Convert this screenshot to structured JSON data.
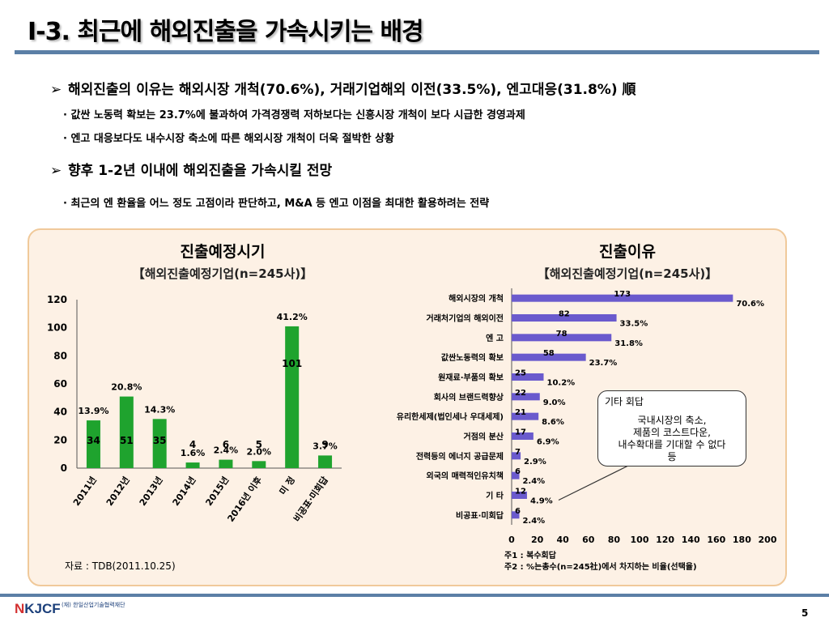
{
  "header": {
    "title": "I-3. 최근에 해외진출을 가속시키는 배경"
  },
  "bullets": [
    {
      "text": "해외진출의 이유는 해외시장 개척(70.6%), 거래기업해외 이전(33.5%), 엔고대응(31.8%) 順",
      "subs": [
        "· 값싼 노동력 확보는 23.7%에 불과하여 가격경쟁력 저하보다는 신흥시장 개척이 보다 시급한 경영과제",
        "· 엔고 대응보다도 내수시장 축소에 따른 해외시장 개척이 더욱 절박한 상황"
      ]
    },
    {
      "text": "향후 1-2년 이내에 해외진출을 가속시킬 전망",
      "subs": [
        "· 최근의 엔 환율을 어느 정도 고점이라 판단하고, M&A 등 엔고 이점을 최대한 활용하려는 전략"
      ]
    }
  ],
  "left_chart_heading": {
    "title": "진출예정시기",
    "subtitle": "【해외진출예정기업(n=245사)】"
  },
  "right_chart_heading": {
    "title": "진출이유",
    "subtitle": "【해외진출예정기업(n=245사)】"
  },
  "chart_data": [
    {
      "type": "bar",
      "title": "진출예정시기",
      "categories": [
        "2011년",
        "2012년",
        "2013년",
        "2014년",
        "2015년",
        "2016년 이후",
        "미 정",
        "비공표·미회답"
      ],
      "values": [
        34,
        51,
        35,
        4,
        6,
        5,
        101,
        9
      ],
      "percent_labels": [
        "13.9%",
        "20.8%",
        "14.3%",
        "1.6%",
        "2.4%",
        "2.0%",
        "41.2%",
        "3.7%"
      ],
      "y_ticks": [
        "0",
        "20",
        "40",
        "60",
        "80",
        "100",
        "120"
      ],
      "ylim": [
        0,
        120
      ],
      "color": "#1fa32e"
    },
    {
      "type": "bar",
      "orientation": "horizontal",
      "title": "진출이유",
      "categories": [
        "해외시장의 개척",
        "거래처기업의 해외이전",
        "엔 고",
        "값싼노동력의 확보",
        "원재료·부품의 확보",
        "회사의 브랜드력향상",
        "유리한세제(법인세나 우대세제)",
        "거점의 분산",
        "전력등의 에너지 공급문제",
        "외국의 매력적인유치책",
        "기 타",
        "비공표·미회답"
      ],
      "values": [
        173,
        82,
        78,
        58,
        25,
        22,
        21,
        17,
        7,
        6,
        12,
        6
      ],
      "percent_labels": [
        "70.6%",
        "33.5%",
        "31.8%",
        "23.7%",
        "10.2%",
        "9.0%",
        "8.6%",
        "6.9%",
        "2.9%",
        "2.4%",
        "4.9%",
        "2.4%"
      ],
      "x_ticks": [
        "0",
        "20",
        "40",
        "60",
        "80",
        "100",
        "120",
        "140",
        "160",
        "180",
        "200"
      ],
      "xlim": [
        0,
        200
      ],
      "color": "#6a5acd"
    }
  ],
  "callout": {
    "heading": "기타 회답",
    "lines": [
      "국내시장의 축소,",
      "제품의 코스트다운,",
      "내수확대를 기대할 수 없다",
      "등"
    ]
  },
  "source": "자료 : TDB(2011.10.25)",
  "notes": [
    "주1 : 복수회답",
    "주2 : %는총수(n=245社)에서 차지하는 비율(선택율)"
  ],
  "footer": {
    "logo": "KJCF",
    "logo_mark": "N",
    "org": "(재) 한일산업기술협력재단",
    "page": "5"
  }
}
